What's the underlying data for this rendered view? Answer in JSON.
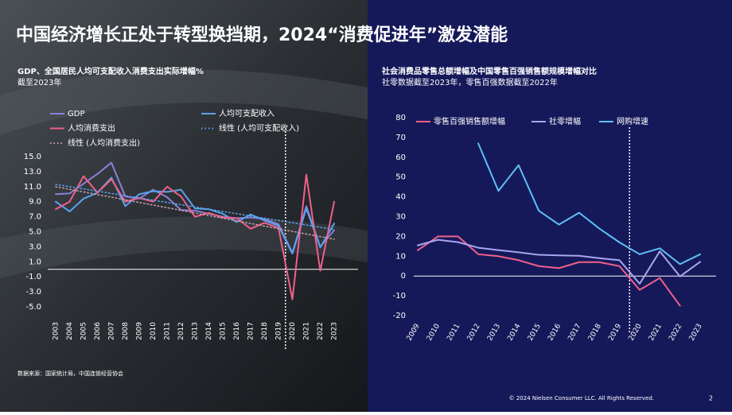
{
  "header": {
    "title": "中国经济增长正处于转型换挡期，2024“消费促进年”激发潜能"
  },
  "chart_data": [
    {
      "type": "line",
      "title": "GDP、全国居民人均可支配收入消费支出实际增幅%",
      "subtitle": "截至2023年",
      "categories": [
        "2003",
        "2004",
        "2005",
        "2006",
        "2007",
        "2008",
        "2009",
        "2010",
        "2011",
        "2012",
        "2013",
        "2014",
        "2015",
        "2016",
        "2017",
        "2018",
        "2019",
        "2020",
        "2021",
        "2022",
        "2023"
      ],
      "ylim": [
        -5,
        15
      ],
      "yticks": [
        {
          "value": 15,
          "label": "15.0"
        },
        {
          "value": 13,
          "label": "13.0"
        },
        {
          "value": 11,
          "label": "11.0"
        },
        {
          "value": 9,
          "label": "9.0"
        },
        {
          "value": 7,
          "label": "7.0"
        },
        {
          "value": 5,
          "label": "5.0"
        },
        {
          "value": 3,
          "label": "3.0"
        },
        {
          "value": 1,
          "label": "1.0"
        },
        {
          "value": -1,
          "label": "-1.0"
        },
        {
          "value": -3,
          "label": "-3.0"
        },
        {
          "value": -5,
          "label": "-5.0"
        }
      ],
      "series": [
        {
          "name": "GDP",
          "color": "#8b7fd6",
          "style": "solid",
          "values": [
            10.0,
            10.1,
            11.4,
            12.7,
            14.2,
            9.7,
            9.4,
            10.6,
            9.6,
            7.9,
            7.8,
            7.4,
            7.0,
            6.8,
            6.9,
            6.7,
            6.0,
            2.2,
            8.4,
            3.0,
            5.2
          ]
        },
        {
          "name": "人均可支配收入",
          "color": "#5aa2f0",
          "style": "solid",
          "values": [
            9.0,
            7.7,
            9.4,
            10.2,
            12.2,
            8.4,
            10.0,
            10.4,
            10.3,
            10.6,
            8.1,
            8.0,
            7.4,
            6.3,
            7.3,
            6.5,
            5.8,
            2.1,
            8.1,
            2.9,
            6.1
          ]
        },
        {
          "name": "人均消费支出",
          "color": "#f0608a",
          "style": "solid",
          "values": [
            8.0,
            9.0,
            12.4,
            10.2,
            12.0,
            9.0,
            9.5,
            9.0,
            11.0,
            9.7,
            7.0,
            7.5,
            6.9,
            6.8,
            5.4,
            6.2,
            5.5,
            -4.0,
            12.6,
            -0.2,
            9.0
          ]
        },
        {
          "name": "线性 (人均可支配收入)",
          "color": "#5aa2f0",
          "style": "dotted",
          "values": [
            11.3,
            11.0,
            10.7,
            10.4,
            10.1,
            9.8,
            9.5,
            9.2,
            8.9,
            8.6,
            8.3,
            8.0,
            7.7,
            7.4,
            7.1,
            6.8,
            6.5,
            6.2,
            5.9,
            5.6,
            5.3
          ]
        },
        {
          "name": "线性 (人均消费支出)",
          "color": "#c9a0b0",
          "style": "dotted",
          "values": [
            11.0,
            10.65,
            10.3,
            9.95,
            9.6,
            9.25,
            8.9,
            8.55,
            8.2,
            7.85,
            7.5,
            7.15,
            6.8,
            6.45,
            6.1,
            5.75,
            5.4,
            5.05,
            4.7,
            4.35,
            4.0
          ]
        }
      ],
      "source": "数据来源：国家统计局，中国连锁经营协会"
    },
    {
      "type": "line",
      "title": "社会消费品零售总额增幅及中国零售百强销售额规模增幅对比",
      "subtitle": "社零数据截至2023年，零售百强数据截至2022年",
      "categories": [
        "2009",
        "2010",
        "2011",
        "2012",
        "2013",
        "2014",
        "2015",
        "2016",
        "2017",
        "2018",
        "2019",
        "2020",
        "2021",
        "2022",
        "2023"
      ],
      "ylim": [
        -20,
        80
      ],
      "yticks": [
        80,
        70,
        60,
        50,
        40,
        30,
        20,
        10,
        0,
        -10,
        -20
      ],
      "series": [
        {
          "name": "零售百强销售额增幅",
          "color": "#f0608a",
          "style": "solid",
          "values": [
            13,
            20,
            20,
            11,
            10,
            8,
            5,
            4,
            7,
            7,
            5,
            -7,
            -1,
            -15,
            null
          ]
        },
        {
          "name": "社零增幅",
          "color": "#a9a5f0",
          "style": "solid",
          "values": [
            15.5,
            18.3,
            17.1,
            14.3,
            13.1,
            12.0,
            10.7,
            10.4,
            10.2,
            9.0,
            8.0,
            -3.9,
            12.5,
            -0.2,
            7.2
          ]
        },
        {
          "name": "网购增速",
          "color": "#5ec0f5",
          "style": "solid",
          "values": [
            null,
            null,
            null,
            67,
            43,
            56,
            33,
            26,
            32,
            24,
            17,
            11,
            14,
            6,
            11
          ]
        }
      ]
    }
  ],
  "footer": {
    "copyright": "© 2024 Nielsen Consumer LLC. All Rights Reserved.",
    "page": "2"
  }
}
